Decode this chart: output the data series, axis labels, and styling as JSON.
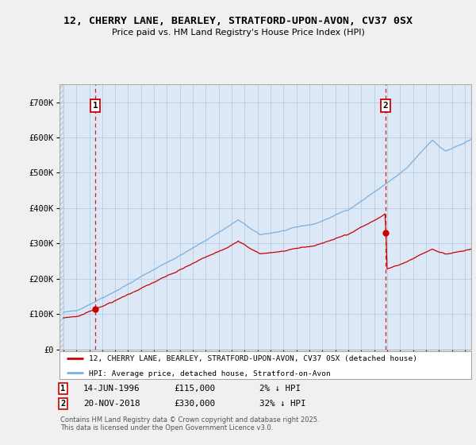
{
  "title": "12, CHERRY LANE, BEARLEY, STRATFORD-UPON-AVON, CV37 0SX",
  "subtitle": "Price paid vs. HM Land Registry's House Price Index (HPI)",
  "ylim": [
    0,
    750000
  ],
  "yticks": [
    0,
    100000,
    200000,
    300000,
    400000,
    500000,
    600000,
    700000
  ],
  "ytick_labels": [
    "£0",
    "£100K",
    "£200K",
    "£300K",
    "£400K",
    "£500K",
    "£600K",
    "£700K"
  ],
  "hpi_color": "#7ab0e0",
  "price_color": "#cc0000",
  "t1_date": 1996.46,
  "t1_price": 115000,
  "t2_date": 2018.89,
  "t2_price": 330000,
  "legend_line1": "12, CHERRY LANE, BEARLEY, STRATFORD-UPON-AVON, CV37 0SX (detached house)",
  "legend_line2": "HPI: Average price, detached house, Stratford-on-Avon",
  "t1_text": "14-JUN-1996",
  "t1_amount": "£115,000",
  "t1_pct": "2% ↓ HPI",
  "t2_text": "20-NOV-2018",
  "t2_amount": "£330,000",
  "t2_pct": "32% ↓ HPI",
  "footer": "Contains HM Land Registry data © Crown copyright and database right 2025.\nThis data is licensed under the Open Government Licence v3.0.",
  "xlim_start": 1993.7,
  "xlim_end": 2025.5,
  "background_color": "#f0f0f0",
  "plot_bg_color": "#dce8f5",
  "grid_color": "#b0c8e0"
}
